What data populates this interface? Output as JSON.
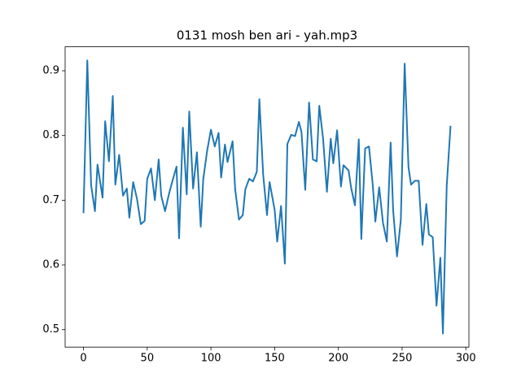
{
  "chart_data": {
    "type": "line",
    "title": "0131 mosh ben ari - yah.mp3",
    "x": [
      0,
      3,
      6,
      9,
      11,
      15,
      17,
      20,
      23,
      25,
      28,
      31,
      34,
      36,
      39,
      42,
      45,
      48,
      50,
      53,
      56,
      59,
      61,
      64,
      67,
      69,
      73,
      75,
      78,
      81,
      83,
      86,
      89,
      92,
      94,
      97,
      100,
      103,
      106,
      108,
      111,
      113,
      117,
      119,
      122,
      125,
      127,
      130,
      133,
      136,
      138,
      141,
      144,
      146,
      150,
      152,
      155,
      158,
      160,
      163,
      166,
      169,
      171,
      174,
      177,
      180,
      183,
      185,
      188,
      191,
      194,
      196,
      199,
      202,
      204,
      208,
      210,
      213,
      216,
      218,
      221,
      224,
      227,
      229,
      232,
      235,
      238,
      241,
      243,
      246,
      249,
      252,
      255,
      257,
      260,
      263,
      266,
      269,
      271,
      274,
      277,
      280,
      282,
      285,
      288
    ],
    "series": [
      {
        "color": "#1f77b4",
        "values": [
          0.68,
          0.916,
          0.723,
          0.683,
          0.755,
          0.704,
          0.822,
          0.76,
          0.861,
          0.724,
          0.77,
          0.707,
          0.718,
          0.673,
          0.728,
          0.702,
          0.663,
          0.668,
          0.733,
          0.749,
          0.7,
          0.763,
          0.707,
          0.683,
          0.709,
          0.724,
          0.752,
          0.641,
          0.812,
          0.709,
          0.837,
          0.718,
          0.774,
          0.659,
          0.733,
          0.776,
          0.809,
          0.783,
          0.804,
          0.735,
          0.786,
          0.759,
          0.791,
          0.717,
          0.67,
          0.677,
          0.717,
          0.733,
          0.729,
          0.744,
          0.856,
          0.739,
          0.677,
          0.728,
          0.685,
          0.636,
          0.691,
          0.602,
          0.787,
          0.801,
          0.799,
          0.821,
          0.806,
          0.716,
          0.851,
          0.763,
          0.76,
          0.846,
          0.795,
          0.713,
          0.795,
          0.757,
          0.808,
          0.721,
          0.754,
          0.746,
          0.719,
          0.692,
          0.794,
          0.64,
          0.78,
          0.783,
          0.723,
          0.667,
          0.72,
          0.665,
          0.636,
          0.789,
          0.683,
          0.613,
          0.67,
          0.911,
          0.751,
          0.724,
          0.73,
          0.73,
          0.631,
          0.694,
          0.647,
          0.643,
          0.537,
          0.611,
          0.494,
          0.722,
          0.815
        ]
      }
    ],
    "xlim": [
      -14.4,
      302.4
    ],
    "ylim": [
      0.473,
      0.937
    ],
    "xticks": [
      0,
      50,
      100,
      150,
      200,
      250,
      300
    ],
    "yticks": [
      0.5,
      0.6,
      0.7,
      0.8,
      0.9
    ]
  }
}
